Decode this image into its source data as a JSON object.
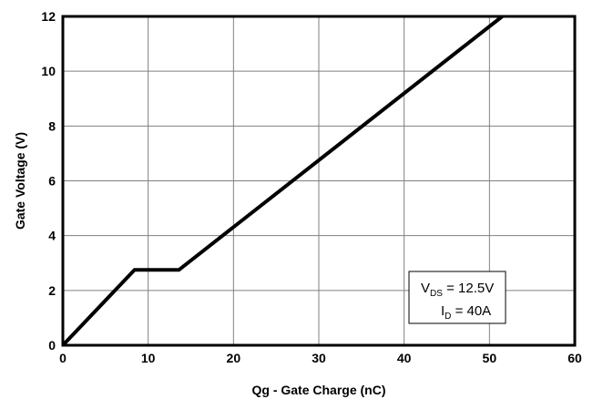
{
  "chart_data": {
    "type": "line",
    "title": "",
    "xlabel": "Qg - Gate Charge (nC)",
    "ylabel": "Gate Voltage (V)",
    "xlim": [
      0,
      60
    ],
    "ylim": [
      0,
      12
    ],
    "xticks": [
      "0",
      "10",
      "20",
      "30",
      "40",
      "50",
      "60"
    ],
    "yticks": [
      "0",
      "2",
      "4",
      "6",
      "8",
      "10",
      "12"
    ],
    "grid": true,
    "series": [
      {
        "x": [
          0,
          8.4,
          13.6,
          51.5
        ],
        "y": [
          0,
          2.75,
          2.75,
          12
        ]
      }
    ],
    "annotation": {
      "line1_main": "V",
      "line1_sub": "DS",
      "line1_rest": " = 12.5V",
      "line2_main": "I",
      "line2_sub": "D",
      "line2_rest": " = 40A"
    }
  }
}
